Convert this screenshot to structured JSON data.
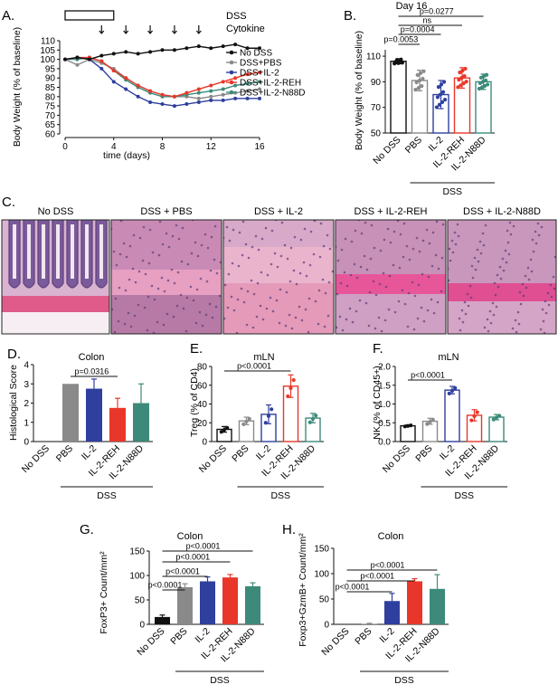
{
  "colors": {
    "nodss": "#111111",
    "pbs": "#8a8a8a",
    "il2": "#2e3f9e",
    "reh": "#e8372a",
    "n88d": "#3d8a7a"
  },
  "groups": [
    "No DSS",
    "PBS",
    "IL-2",
    "IL-2-REH",
    "IL-2-N88D"
  ],
  "dss_label": "DSS",
  "panelA": {
    "letter": "A.",
    "dss_label": "DSS",
    "cytokine_label": "Cytokine",
    "legend": [
      "No DSS",
      "DSS+PBS",
      "DSS+IL-2",
      "DSS+IL-2-REH",
      "DSS+IL-2-N88D"
    ],
    "ylabel": "Body Weight (% of baseline)",
    "xlabel": "time (days)",
    "yticks": [
      "60",
      "65",
      "70",
      "75",
      "80",
      "85",
      "90",
      "95",
      "100",
      "105",
      "110"
    ],
    "xticks": [
      "0",
      "4",
      "8",
      "12",
      "16"
    ]
  },
  "panelB": {
    "letter": "B.",
    "title": "Day 16",
    "ylabel": "Body Weight (% of baseline)",
    "yticks": [
      "50",
      "70",
      "90",
      "110"
    ],
    "pvalues": [
      "p=0.0053",
      "p=0.0004",
      "ns",
      "p=0.0277"
    ]
  },
  "panelC": {
    "letter": "C.",
    "labels": [
      "No DSS",
      "DSS + PBS",
      "DSS + IL-2",
      "DSS + IL-2-REH",
      "DSS + IL-2-N88D"
    ]
  },
  "panelD": {
    "letter": "D.",
    "title": "Colon",
    "ylabel": "Histological Score",
    "yticks": [
      "0",
      "1",
      "2",
      "3",
      "4"
    ],
    "pvalues": [
      "p=0.0316"
    ]
  },
  "panelE": {
    "letter": "E.",
    "title": "mLN",
    "ylabel": "Treg (% of CD4)",
    "yticks": [
      "0",
      "20",
      "40",
      "60",
      "80"
    ],
    "pvalues": [
      "p<0.0001"
    ]
  },
  "panelF": {
    "letter": "F.",
    "title": "mLN",
    "ylabel": "NK (% of CD45+)",
    "yticks": [
      "0.0",
      "0.5",
      "1.0",
      "1.5",
      "2.0"
    ],
    "pvalues": [
      "p<0.0001"
    ]
  },
  "panelG": {
    "letter": "G.",
    "title": "Colon",
    "ylabel": "FoxP3+ Count/mm²",
    "yticks": [
      "0",
      "50",
      "100",
      "150"
    ],
    "pvalues": [
      "p<0.0001",
      "p<0.0001",
      "p<0.0001",
      "p<0.0001"
    ]
  },
  "panelH": {
    "letter": "H.",
    "title": "Colon",
    "ylabel": "Foxp3+GzmB+ Count/mm²",
    "yticks": [
      "0",
      "50",
      "100",
      "150"
    ],
    "pvalues": [
      "p<0.0001",
      "p<0.0001",
      "p<0.0001"
    ]
  },
  "chart_data": [
    {
      "panel": "A",
      "type": "line",
      "x": [
        0,
        1,
        2,
        3,
        4,
        5,
        6,
        7,
        8,
        9,
        10,
        11,
        12,
        13,
        14,
        15,
        16
      ],
      "ylim": [
        60,
        110
      ],
      "xlim": [
        0,
        16
      ],
      "series": [
        {
          "name": "No DSS",
          "values": [
            100,
            101,
            100,
            102,
            103,
            104,
            103,
            104,
            105,
            105,
            106,
            107,
            106,
            107,
            108,
            106,
            106
          ]
        },
        {
          "name": "DSS+PBS",
          "values": [
            100,
            97,
            100,
            98,
            95,
            90,
            86,
            83,
            81,
            80,
            80,
            79,
            80,
            81,
            82,
            83,
            84
          ]
        },
        {
          "name": "DSS+IL-2",
          "values": [
            100,
            101,
            100,
            95,
            88,
            84,
            80,
            77,
            76,
            75,
            76,
            77,
            78,
            78,
            79,
            79,
            79
          ]
        },
        {
          "name": "DSS+IL-2-REH",
          "values": [
            100,
            101,
            101,
            99,
            94,
            90,
            86,
            83,
            81,
            80,
            82,
            84,
            86,
            88,
            90,
            92,
            93
          ]
        },
        {
          "name": "DSS+IL-2-N88D",
          "values": [
            100,
            100,
            101,
            99,
            94,
            89,
            85,
            82,
            80,
            80,
            81,
            82,
            83,
            84,
            86,
            87,
            88
          ]
        }
      ]
    },
    {
      "panel": "B",
      "type": "bar",
      "ylim": [
        50,
        115
      ],
      "categories": [
        "No DSS",
        "PBS",
        "IL-2",
        "IL-2-REH",
        "IL-2-N88D"
      ],
      "values": [
        106,
        91,
        80,
        93,
        90
      ],
      "errors": [
        2,
        8,
        11,
        8,
        6
      ]
    },
    {
      "panel": "D",
      "type": "bar",
      "ylim": [
        0,
        4
      ],
      "categories": [
        "No DSS",
        "PBS",
        "IL-2",
        "IL-2-REH",
        "IL-2-N88D"
      ],
      "values": [
        0,
        3.0,
        2.75,
        1.75,
        2.0
      ],
      "errors": [
        0,
        0,
        0.5,
        0.5,
        1.0
      ]
    },
    {
      "panel": "E",
      "type": "bar",
      "ylim": [
        0,
        80
      ],
      "categories": [
        "No DSS",
        "PBS",
        "IL-2",
        "IL-2-REH",
        "IL-2-N88D"
      ],
      "values": [
        13,
        22,
        29,
        59,
        25
      ],
      "errors": [
        3,
        4,
        10,
        12,
        5
      ]
    },
    {
      "panel": "F",
      "type": "bar",
      "ylim": [
        0,
        2.0
      ],
      "categories": [
        "No DSS",
        "PBS",
        "IL-2",
        "IL-2-REH",
        "IL-2-N88D"
      ],
      "values": [
        0.42,
        0.54,
        1.37,
        0.7,
        0.65
      ],
      "errors": [
        0.02,
        0.08,
        0.1,
        0.15,
        0.07
      ]
    },
    {
      "panel": "G",
      "type": "bar",
      "ylim": [
        0,
        150
      ],
      "categories": [
        "No DSS",
        "PBS",
        "IL-2",
        "IL-2-REH",
        "IL-2-N88D"
      ],
      "values": [
        15,
        76,
        88,
        96,
        78
      ],
      "errors": [
        4,
        7,
        9,
        6,
        7
      ]
    },
    {
      "panel": "H",
      "type": "bar",
      "ylim": [
        0,
        150
      ],
      "categories": [
        "No DSS",
        "PBS",
        "IL-2",
        "IL-2-REH",
        "IL-2-N88D"
      ],
      "values": [
        0,
        1,
        46,
        85,
        70
      ],
      "errors": [
        0,
        1,
        15,
        5,
        28
      ]
    }
  ]
}
